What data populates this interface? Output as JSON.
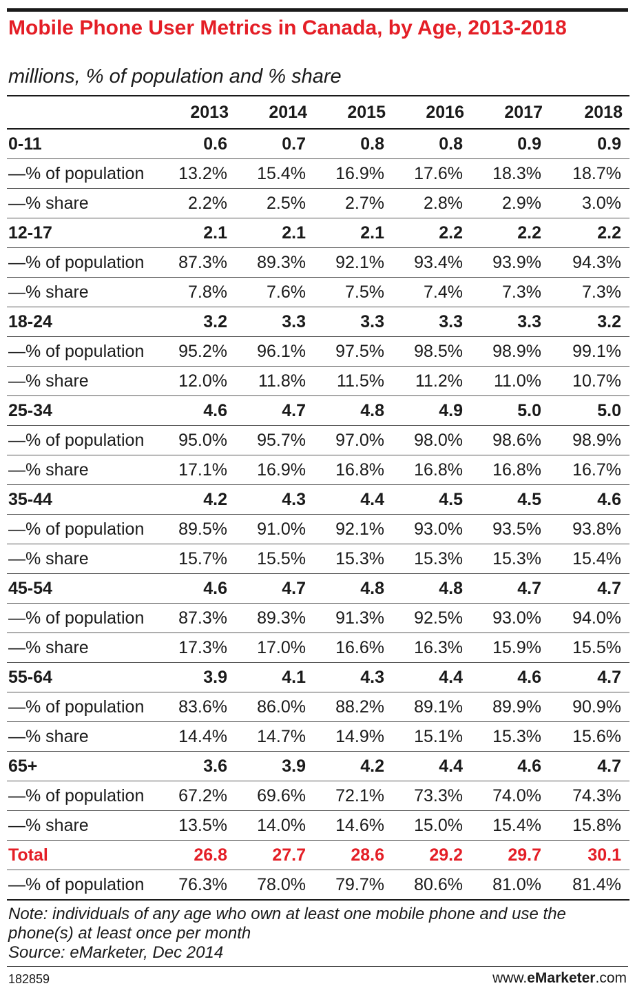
{
  "header": {
    "title": "Mobile Phone User Metrics in Canada, by Age, 2013-2018",
    "subtitle": "millions, % of population and % share"
  },
  "chart_data": {
    "type": "table",
    "columns": [
      "",
      "2013",
      "2014",
      "2015",
      "2016",
      "2017",
      "2018"
    ],
    "rows": [
      {
        "kind": "group",
        "label": "0-11",
        "values": [
          "0.6",
          "0.7",
          "0.8",
          "0.8",
          "0.9",
          "0.9"
        ]
      },
      {
        "kind": "sub",
        "label": "—% of population",
        "values": [
          "13.2%",
          "15.4%",
          "16.9%",
          "17.6%",
          "18.3%",
          "18.7%"
        ]
      },
      {
        "kind": "sub",
        "label": "—% share",
        "values": [
          "2.2%",
          "2.5%",
          "2.7%",
          "2.8%",
          "2.9%",
          "3.0%"
        ]
      },
      {
        "kind": "group",
        "label": "12-17",
        "values": [
          "2.1",
          "2.1",
          "2.1",
          "2.2",
          "2.2",
          "2.2"
        ]
      },
      {
        "kind": "sub",
        "label": "—% of population",
        "values": [
          "87.3%",
          "89.3%",
          "92.1%",
          "93.4%",
          "93.9%",
          "94.3%"
        ]
      },
      {
        "kind": "sub",
        "label": "—% share",
        "values": [
          "7.8%",
          "7.6%",
          "7.5%",
          "7.4%",
          "7.3%",
          "7.3%"
        ]
      },
      {
        "kind": "group",
        "label": "18-24",
        "values": [
          "3.2",
          "3.3",
          "3.3",
          "3.3",
          "3.3",
          "3.2"
        ]
      },
      {
        "kind": "sub",
        "label": "—% of population",
        "values": [
          "95.2%",
          "96.1%",
          "97.5%",
          "98.5%",
          "98.9%",
          "99.1%"
        ]
      },
      {
        "kind": "sub",
        "label": "—% share",
        "values": [
          "12.0%",
          "11.8%",
          "11.5%",
          "11.2%",
          "11.0%",
          "10.7%"
        ]
      },
      {
        "kind": "group",
        "label": "25-34",
        "values": [
          "4.6",
          "4.7",
          "4.8",
          "4.9",
          "5.0",
          "5.0"
        ]
      },
      {
        "kind": "sub",
        "label": "—% of population",
        "values": [
          "95.0%",
          "95.7%",
          "97.0%",
          "98.0%",
          "98.6%",
          "98.9%"
        ]
      },
      {
        "kind": "sub",
        "label": "—% share",
        "values": [
          "17.1%",
          "16.9%",
          "16.8%",
          "16.8%",
          "16.8%",
          "16.7%"
        ]
      },
      {
        "kind": "group",
        "label": "35-44",
        "values": [
          "4.2",
          "4.3",
          "4.4",
          "4.5",
          "4.5",
          "4.6"
        ]
      },
      {
        "kind": "sub",
        "label": "—% of population",
        "values": [
          "89.5%",
          "91.0%",
          "92.1%",
          "93.0%",
          "93.5%",
          "93.8%"
        ]
      },
      {
        "kind": "sub",
        "label": "—% share",
        "values": [
          "15.7%",
          "15.5%",
          "15.3%",
          "15.3%",
          "15.3%",
          "15.4%"
        ]
      },
      {
        "kind": "group",
        "label": "45-54",
        "values": [
          "4.6",
          "4.7",
          "4.8",
          "4.8",
          "4.7",
          "4.7"
        ]
      },
      {
        "kind": "sub",
        "label": "—% of population",
        "values": [
          "87.3%",
          "89.3%",
          "91.3%",
          "92.5%",
          "93.0%",
          "94.0%"
        ]
      },
      {
        "kind": "sub",
        "label": "—% share",
        "values": [
          "17.3%",
          "17.0%",
          "16.6%",
          "16.3%",
          "15.9%",
          "15.5%"
        ]
      },
      {
        "kind": "group",
        "label": "55-64",
        "values": [
          "3.9",
          "4.1",
          "4.3",
          "4.4",
          "4.6",
          "4.7"
        ]
      },
      {
        "kind": "sub",
        "label": "—% of population",
        "values": [
          "83.6%",
          "86.0%",
          "88.2%",
          "89.1%",
          "89.9%",
          "90.9%"
        ]
      },
      {
        "kind": "sub",
        "label": "—% share",
        "values": [
          "14.4%",
          "14.7%",
          "14.9%",
          "15.1%",
          "15.3%",
          "15.6%"
        ]
      },
      {
        "kind": "group",
        "label": "65+",
        "values": [
          "3.6",
          "3.9",
          "4.2",
          "4.4",
          "4.6",
          "4.7"
        ]
      },
      {
        "kind": "sub",
        "label": "—% of population",
        "values": [
          "67.2%",
          "69.6%",
          "72.1%",
          "73.3%",
          "74.0%",
          "74.3%"
        ]
      },
      {
        "kind": "sub",
        "label": "—% share",
        "values": [
          "13.5%",
          "14.0%",
          "14.6%",
          "15.0%",
          "15.4%",
          "15.8%"
        ]
      },
      {
        "kind": "total",
        "label": "Total",
        "values": [
          "26.8",
          "27.7",
          "28.6",
          "29.2",
          "29.7",
          "30.1"
        ]
      },
      {
        "kind": "sub",
        "label": "—% of population",
        "values": [
          "76.3%",
          "78.0%",
          "79.7%",
          "80.6%",
          "81.0%",
          "81.4%"
        ]
      }
    ]
  },
  "footer": {
    "note": "Note: individuals of any age who own at least one mobile phone and use the phone(s) at least once per month",
    "source": "Source: eMarketer, Dec 2014",
    "chart_id": "182859",
    "brand_prefix": "www.",
    "brand_name": "eMarketer",
    "brand_suffix": ".com"
  },
  "colors": {
    "accent": "#e41e26",
    "text": "#1a1a1a"
  }
}
